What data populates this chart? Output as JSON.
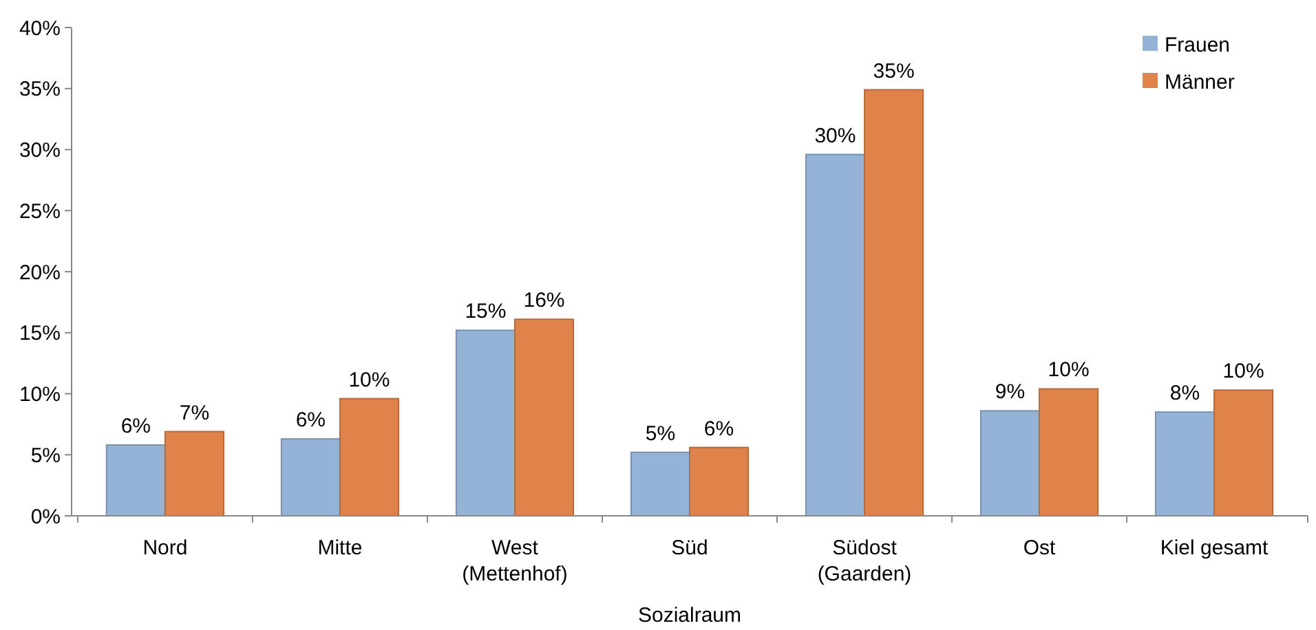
{
  "chart_data": {
    "type": "bar",
    "xlabel": "Sozialraum",
    "categories": [
      "Nord",
      "Mitte",
      "West\n(Mettenhof)",
      "Süd",
      "Südost\n(Gaarden)",
      "Ost",
      "Kiel gesamt"
    ],
    "series": [
      {
        "name": "Frauen",
        "color": "#95b3d7",
        "values": [
          5.8,
          6.3,
          15.2,
          5.2,
          29.6,
          8.6,
          8.5
        ],
        "value_labels": [
          "6%",
          "6%",
          "15%",
          "5%",
          "30%",
          "9%",
          "8%"
        ]
      },
      {
        "name": "Männer",
        "color": "#e0834a",
        "values": [
          6.9,
          9.6,
          16.1,
          5.6,
          34.9,
          10.4,
          10.3
        ],
        "value_labels": [
          "7%",
          "10%",
          "16%",
          "6%",
          "35%",
          "10%",
          "10%"
        ]
      }
    ],
    "ylim": [
      0,
      40
    ],
    "yticks": [
      {
        "value": 0,
        "label": "0%"
      },
      {
        "value": 5,
        "label": "5%"
      },
      {
        "value": 10,
        "label": "10%"
      },
      {
        "value": 15,
        "label": "15%"
      },
      {
        "value": 20,
        "label": "20%"
      },
      {
        "value": 25,
        "label": "25%"
      },
      {
        "value": 30,
        "label": "30%"
      },
      {
        "value": 35,
        "label": "35%"
      },
      {
        "value": 40,
        "label": "40%"
      }
    ],
    "legend": "top right"
  }
}
